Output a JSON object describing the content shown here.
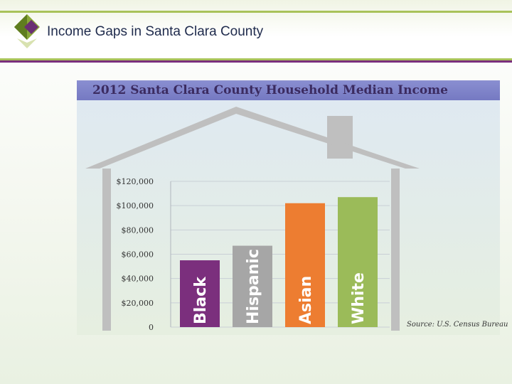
{
  "header": {
    "title": "Income Gaps in Santa Clara County"
  },
  "chart_data": {
    "type": "bar",
    "title": "2012 Santa Clara County Household Median Income",
    "categories": [
      "Black",
      "Hispanic",
      "Asian",
      "White"
    ],
    "values": [
      55000,
      67000,
      102000,
      107000
    ],
    "ylim": [
      0,
      120000
    ],
    "yticks": [
      0,
      20000,
      40000,
      60000,
      80000,
      100000,
      120000
    ],
    "ytick_labels": [
      "0",
      "$20,000",
      "$40,000",
      "$60,000",
      "$80,000",
      "$100,000",
      "$120,000"
    ],
    "colors": [
      "#7b2f7d",
      "#a6a6a6",
      "#ed7d31",
      "#9bbb59"
    ],
    "grid": true,
    "source": "Source: U.S. Census Bureau"
  },
  "colors": {
    "green_rule": "#a9c25a",
    "purple_rule": "#7b2f7d",
    "house": "#bfbfbf"
  }
}
